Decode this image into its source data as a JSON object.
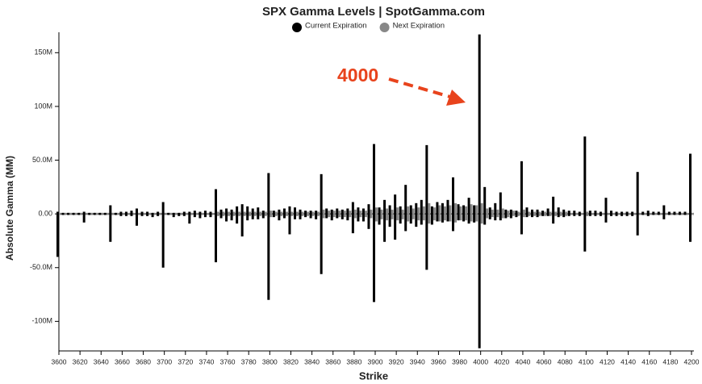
{
  "chart_data": {
    "type": "bar",
    "title": "SPX Gamma Levels | SpotGamma.com",
    "x_label": "Strike",
    "y_label": "Absolute Gamma (MM)",
    "annotation": "4000",
    "xlim": [
      3600,
      4200
    ],
    "ylim": [
      -126,
      169
    ],
    "xticks": [
      3600,
      3620,
      3640,
      3660,
      3680,
      3700,
      3720,
      3740,
      3760,
      3780,
      3800,
      3820,
      3840,
      3860,
      3880,
      3900,
      3920,
      3940,
      3960,
      3980,
      4000,
      4020,
      4040,
      4060,
      4080,
      4100,
      4120,
      4140,
      4160,
      4180,
      4200
    ],
    "yticks": [
      {
        "value": -100,
        "label": "-100M"
      },
      {
        "value": -50,
        "label": "-50.0M"
      },
      {
        "value": 0,
        "label": "0.00"
      },
      {
        "value": 50,
        "label": "50.0M"
      },
      {
        "value": 100,
        "label": "100M"
      },
      {
        "value": 150,
        "label": "150M"
      }
    ],
    "grid": false,
    "x": [
      3600,
      3605,
      3610,
      3615,
      3620,
      3625,
      3630,
      3635,
      3640,
      3645,
      3650,
      3655,
      3660,
      3665,
      3670,
      3675,
      3680,
      3685,
      3690,
      3695,
      3700,
      3705,
      3710,
      3715,
      3720,
      3725,
      3730,
      3735,
      3740,
      3745,
      3750,
      3755,
      3760,
      3765,
      3770,
      3775,
      3780,
      3785,
      3790,
      3795,
      3800,
      3805,
      3810,
      3815,
      3820,
      3825,
      3830,
      3835,
      3840,
      3845,
      3850,
      3855,
      3860,
      3865,
      3870,
      3875,
      3880,
      3885,
      3890,
      3895,
      3900,
      3905,
      3910,
      3915,
      3920,
      3925,
      3930,
      3935,
      3940,
      3945,
      3950,
      3955,
      3960,
      3965,
      3970,
      3975,
      3980,
      3985,
      3990,
      3995,
      4000,
      4005,
      4010,
      4015,
      4020,
      4025,
      4030,
      4035,
      4040,
      4045,
      4050,
      4055,
      4060,
      4065,
      4070,
      4075,
      4080,
      4085,
      4090,
      4095,
      4100,
      4105,
      4110,
      4115,
      4120,
      4125,
      4130,
      4135,
      4140,
      4145,
      4150,
      4155,
      4160,
      4165,
      4170,
      4175,
      4180,
      4185,
      4190,
      4195,
      4200
    ],
    "series": [
      {
        "name": "Next Expiration",
        "color": "#888888",
        "call_values": [
          1,
          1,
          1,
          1,
          1,
          1,
          1,
          1,
          1,
          1,
          1,
          1,
          1,
          1,
          1,
          1,
          1,
          1,
          1,
          1,
          1,
          1,
          1,
          1,
          1,
          1,
          1,
          1,
          1,
          1,
          2,
          2,
          2,
          2,
          2,
          2,
          2,
          2,
          2,
          2,
          3,
          2,
          2,
          2,
          2,
          2,
          2,
          2,
          2,
          2,
          4,
          3,
          3,
          3,
          3,
          3,
          4,
          3,
          3,
          4,
          6,
          4,
          5,
          4,
          6,
          4,
          7,
          5,
          6,
          7,
          10,
          6,
          8,
          7,
          8,
          10,
          7,
          7,
          9,
          8,
          10,
          5,
          4,
          4,
          5,
          3,
          3,
          2,
          4,
          2,
          2,
          2,
          2,
          2,
          2,
          2,
          2,
          1,
          1,
          1,
          2,
          1,
          1,
          1,
          1,
          1,
          1,
          1,
          1,
          1,
          1,
          1,
          1,
          1,
          1,
          1,
          1,
          1,
          1,
          1,
          1
        ],
        "put_values": [
          -1,
          -1,
          -1,
          -1,
          -1,
          -1,
          -1,
          -1,
          -1,
          -1,
          -1,
          -1,
          -1,
          -1,
          -1,
          -1,
          -1,
          -1,
          -1,
          -1,
          -1,
          -1,
          -1,
          -1,
          -1,
          -1,
          -1,
          -1,
          -1,
          -1,
          -2,
          -2,
          -2,
          -2,
          -2,
          -2,
          -2,
          -2,
          -2,
          -2,
          -3,
          -2,
          -2,
          -2,
          -2,
          -2,
          -2,
          -2,
          -2,
          -2,
          -4,
          -3,
          -3,
          -3,
          -3,
          -3,
          -4,
          -3,
          -3,
          -4,
          -7,
          -5,
          -6,
          -5,
          -6,
          -5,
          -7,
          -5,
          -6,
          -6,
          -9,
          -6,
          -7,
          -6,
          -7,
          -8,
          -6,
          -6,
          -7,
          -7,
          -9,
          -4,
          -3,
          -3,
          -4,
          -3,
          -2,
          -2,
          -3,
          -2,
          -2,
          -2,
          -2,
          -2,
          -2,
          -2,
          -2,
          -1,
          -1,
          -1,
          -2,
          -1,
          -1,
          -1,
          -1,
          -1,
          -1,
          -1,
          -1,
          -1,
          -1,
          -1,
          -1,
          -1,
          -1,
          -1,
          -1,
          -1,
          -1,
          -1,
          -1
        ]
      },
      {
        "name": "Current Expiration",
        "color": "#000000",
        "call_values": [
          2,
          1,
          1,
          1,
          1,
          2,
          1,
          1,
          1,
          1,
          8,
          1,
          2,
          2,
          3,
          5,
          2,
          2,
          1,
          2,
          11,
          1,
          1,
          1,
          2,
          2,
          3,
          2,
          3,
          2,
          23,
          4,
          5,
          4,
          7,
          9,
          7,
          5,
          6,
          3,
          38,
          3,
          4,
          5,
          7,
          6,
          4,
          3,
          3,
          3,
          37,
          5,
          4,
          5,
          4,
          5,
          11,
          6,
          5,
          9,
          65,
          6,
          13,
          8,
          18,
          7,
          27,
          8,
          10,
          13,
          64,
          7,
          11,
          10,
          13,
          34,
          9,
          8,
          15,
          8,
          167,
          25,
          6,
          10,
          20,
          4,
          4,
          3,
          49,
          6,
          4,
          4,
          3,
          5,
          16,
          6,
          4,
          3,
          3,
          2,
          72,
          3,
          3,
          2,
          15,
          3,
          2,
          2,
          2,
          2,
          39,
          2,
          3,
          2,
          2,
          8,
          2,
          2,
          2,
          2,
          56
        ],
        "put_values": [
          -40,
          -1,
          -1,
          -1,
          -1,
          -8,
          -1,
          -1,
          -1,
          -1,
          -26,
          -1,
          -2,
          -2,
          -2,
          -11,
          -2,
          -2,
          -3,
          -2,
          -50,
          -1,
          -3,
          -2,
          -2,
          -9,
          -3,
          -4,
          -3,
          -3,
          -45,
          -4,
          -7,
          -6,
          -9,
          -21,
          -6,
          -5,
          -5,
          -4,
          -80,
          -3,
          -6,
          -4,
          -19,
          -5,
          -5,
          -3,
          -4,
          -5,
          -56,
          -4,
          -6,
          -4,
          -5,
          -6,
          -18,
          -7,
          -7,
          -14,
          -82,
          -10,
          -26,
          -12,
          -24,
          -9,
          -16,
          -9,
          -12,
          -10,
          -52,
          -10,
          -7,
          -8,
          -7,
          -16,
          -6,
          -7,
          -9,
          -8,
          -125,
          -10,
          -5,
          -6,
          -6,
          -4,
          -4,
          -3,
          -19,
          -3,
          -3,
          -3,
          -2,
          -2,
          -9,
          -3,
          -3,
          -2,
          -2,
          -2,
          -35,
          -2,
          -2,
          -2,
          -8,
          -2,
          -2,
          -2,
          -2,
          -2,
          -20,
          -1,
          -2,
          -1,
          -1,
          -5,
          -1,
          -1,
          -1,
          -1,
          -26
        ]
      }
    ]
  }
}
